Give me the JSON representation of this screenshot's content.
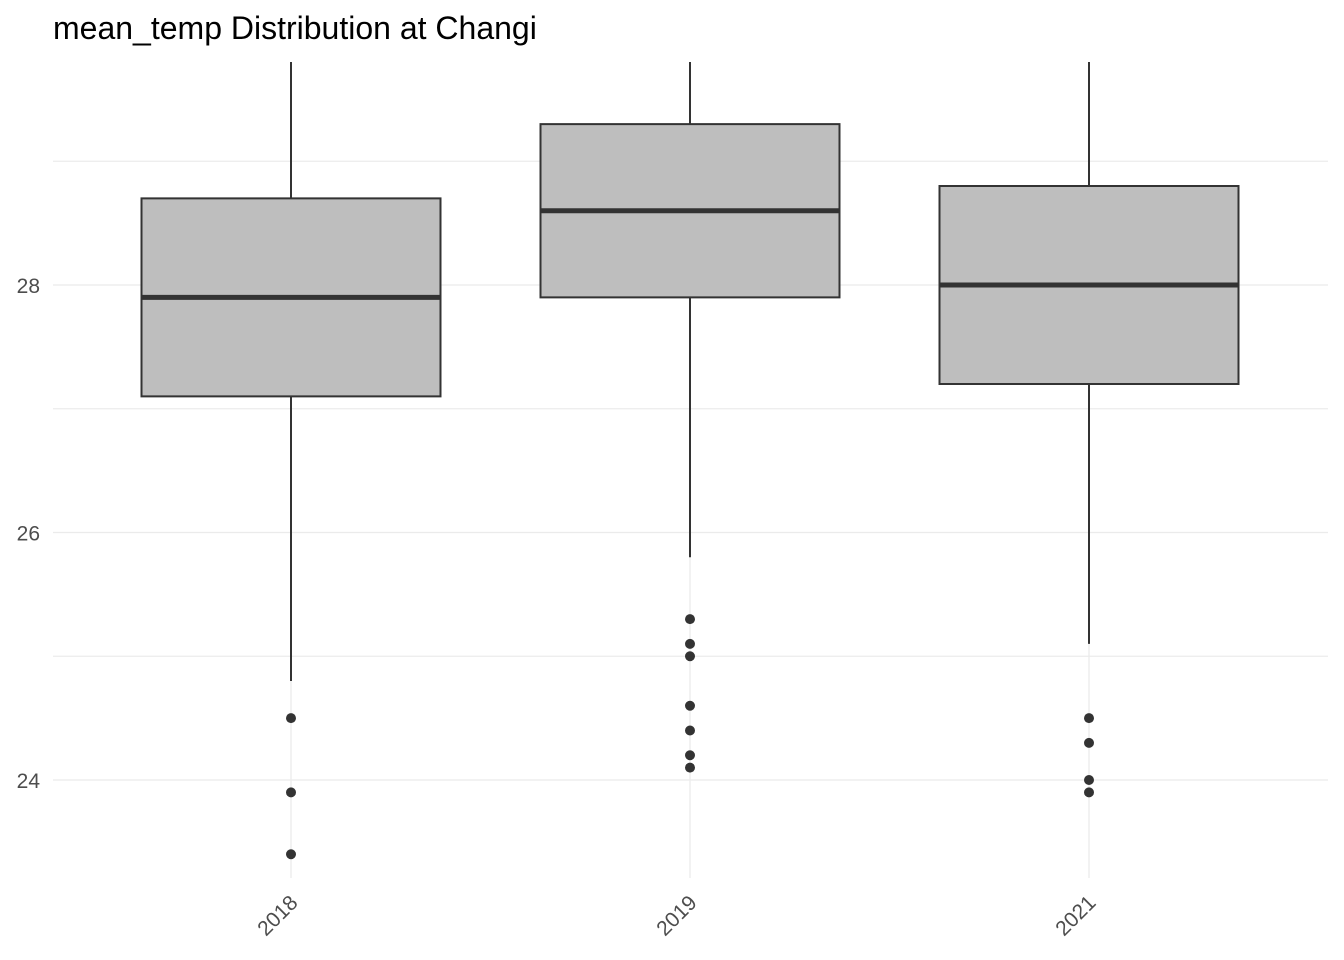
{
  "chart_data": {
    "type": "boxplot",
    "title": "mean_temp Distribution at Changi",
    "xlabel": "",
    "ylabel": "",
    "categories": [
      "2018",
      "2019",
      "2021"
    ],
    "boxes": [
      {
        "category": "2018",
        "whisker_low": 24.8,
        "q1": 27.1,
        "median": 27.9,
        "q3": 28.7,
        "whisker_high": 30.0,
        "outliers": [
          24.5,
          23.9,
          23.4
        ]
      },
      {
        "category": "2019",
        "whisker_low": 25.8,
        "q1": 27.9,
        "median": 28.6,
        "q3": 29.3,
        "whisker_high": 30.0,
        "outliers": [
          25.3,
          25.1,
          25.0,
          24.6,
          24.4,
          24.2,
          24.1
        ]
      },
      {
        "category": "2021",
        "whisker_low": 25.1,
        "q1": 27.2,
        "median": 28.0,
        "q3": 28.8,
        "whisker_high": 30.0,
        "outliers": [
          24.5,
          24.3,
          24.0,
          23.9
        ]
      }
    ],
    "y_ticks": [
      24,
      26,
      28
    ],
    "ylim": [
      23.2,
      30.0
    ],
    "grid": true,
    "colors": {
      "box_fill": "#bebebe",
      "box_stroke": "#333333",
      "grid": "#ebebeb",
      "tick_text": "#4d4d4d"
    }
  }
}
